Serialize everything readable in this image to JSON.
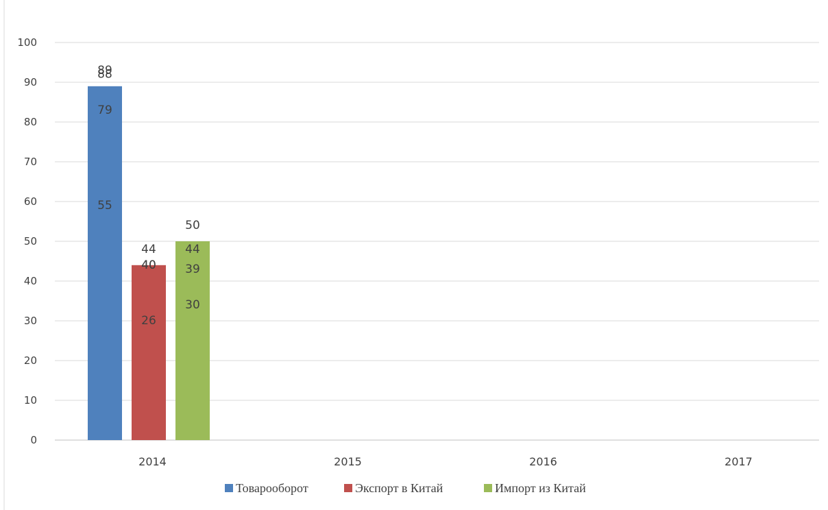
{
  "chart_data": {
    "type": "bar",
    "title": "",
    "xlabel": "",
    "ylabel": "",
    "categories": [
      "2014",
      "2015",
      "2016",
      "2017"
    ],
    "series": [
      {
        "name": "Товарооборот",
        "color": "#4f81bd",
        "values": [
          55,
          79,
          88,
          89
        ]
      },
      {
        "name": "Экспорт в Китай",
        "color": "#c0504d",
        "values": [
          26,
          40,
          44,
          40
        ]
      },
      {
        "name": "Импорт из Китай",
        "color": "#9bbb59",
        "values": [
          30,
          39,
          44,
          50
        ]
      }
    ],
    "ylim": [
      0,
      100
    ],
    "yticks": [
      "0",
      "10",
      "20",
      "30",
      "40",
      "50",
      "60",
      "70",
      "80",
      "90",
      "100"
    ],
    "grid": true,
    "legend_position": "bottom",
    "data_labels": true
  }
}
